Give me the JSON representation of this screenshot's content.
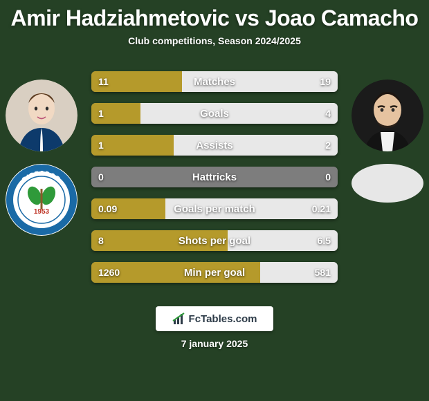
{
  "background_color": "#254125",
  "text_color": "#ffffff",
  "player1": {
    "name": "Amir Hadziahmetovic",
    "color": "#b59a2b",
    "avatar_bg": "#d9cfc2",
    "club_bg": "#ffffff"
  },
  "player2": {
    "name": "Joao Camacho",
    "color": "#e8e8e8",
    "avatar_bg": "#1b1b1b",
    "blank_bg": "#e7e7e7"
  },
  "title_vs": "vs",
  "subtitle": "Club competitions, Season 2024/2025",
  "bar_bg": "#7d7d7d",
  "stats": [
    {
      "label": "Matches",
      "v1": "11",
      "v2": "19",
      "p1": 36.7,
      "p2": 63.3
    },
    {
      "label": "Goals",
      "v1": "1",
      "v2": "4",
      "p1": 20.0,
      "p2": 80.0
    },
    {
      "label": "Assists",
      "v1": "1",
      "v2": "2",
      "p1": 33.3,
      "p2": 66.7
    },
    {
      "label": "Hattricks",
      "v1": "0",
      "v2": "0",
      "p1": 0,
      "p2": 0
    },
    {
      "label": "Goals per match",
      "v1": "0.09",
      "v2": "0.21",
      "p1": 30.0,
      "p2": 70.0
    },
    {
      "label": "Shots per goal",
      "v1": "8",
      "v2": "6.5",
      "p1": 55.2,
      "p2": 44.8
    },
    {
      "label": "Min per goal",
      "v1": "1260",
      "v2": "581",
      "p1": 68.4,
      "p2": 31.6
    }
  ],
  "footer_brand": "FcTables.com",
  "footer_date": "7 january 2025",
  "club1": {
    "ring_color": "#1a6aa6",
    "leaf_color": "#2f9a3a",
    "text_top": "RIZESPOR",
    "year": "1953"
  }
}
